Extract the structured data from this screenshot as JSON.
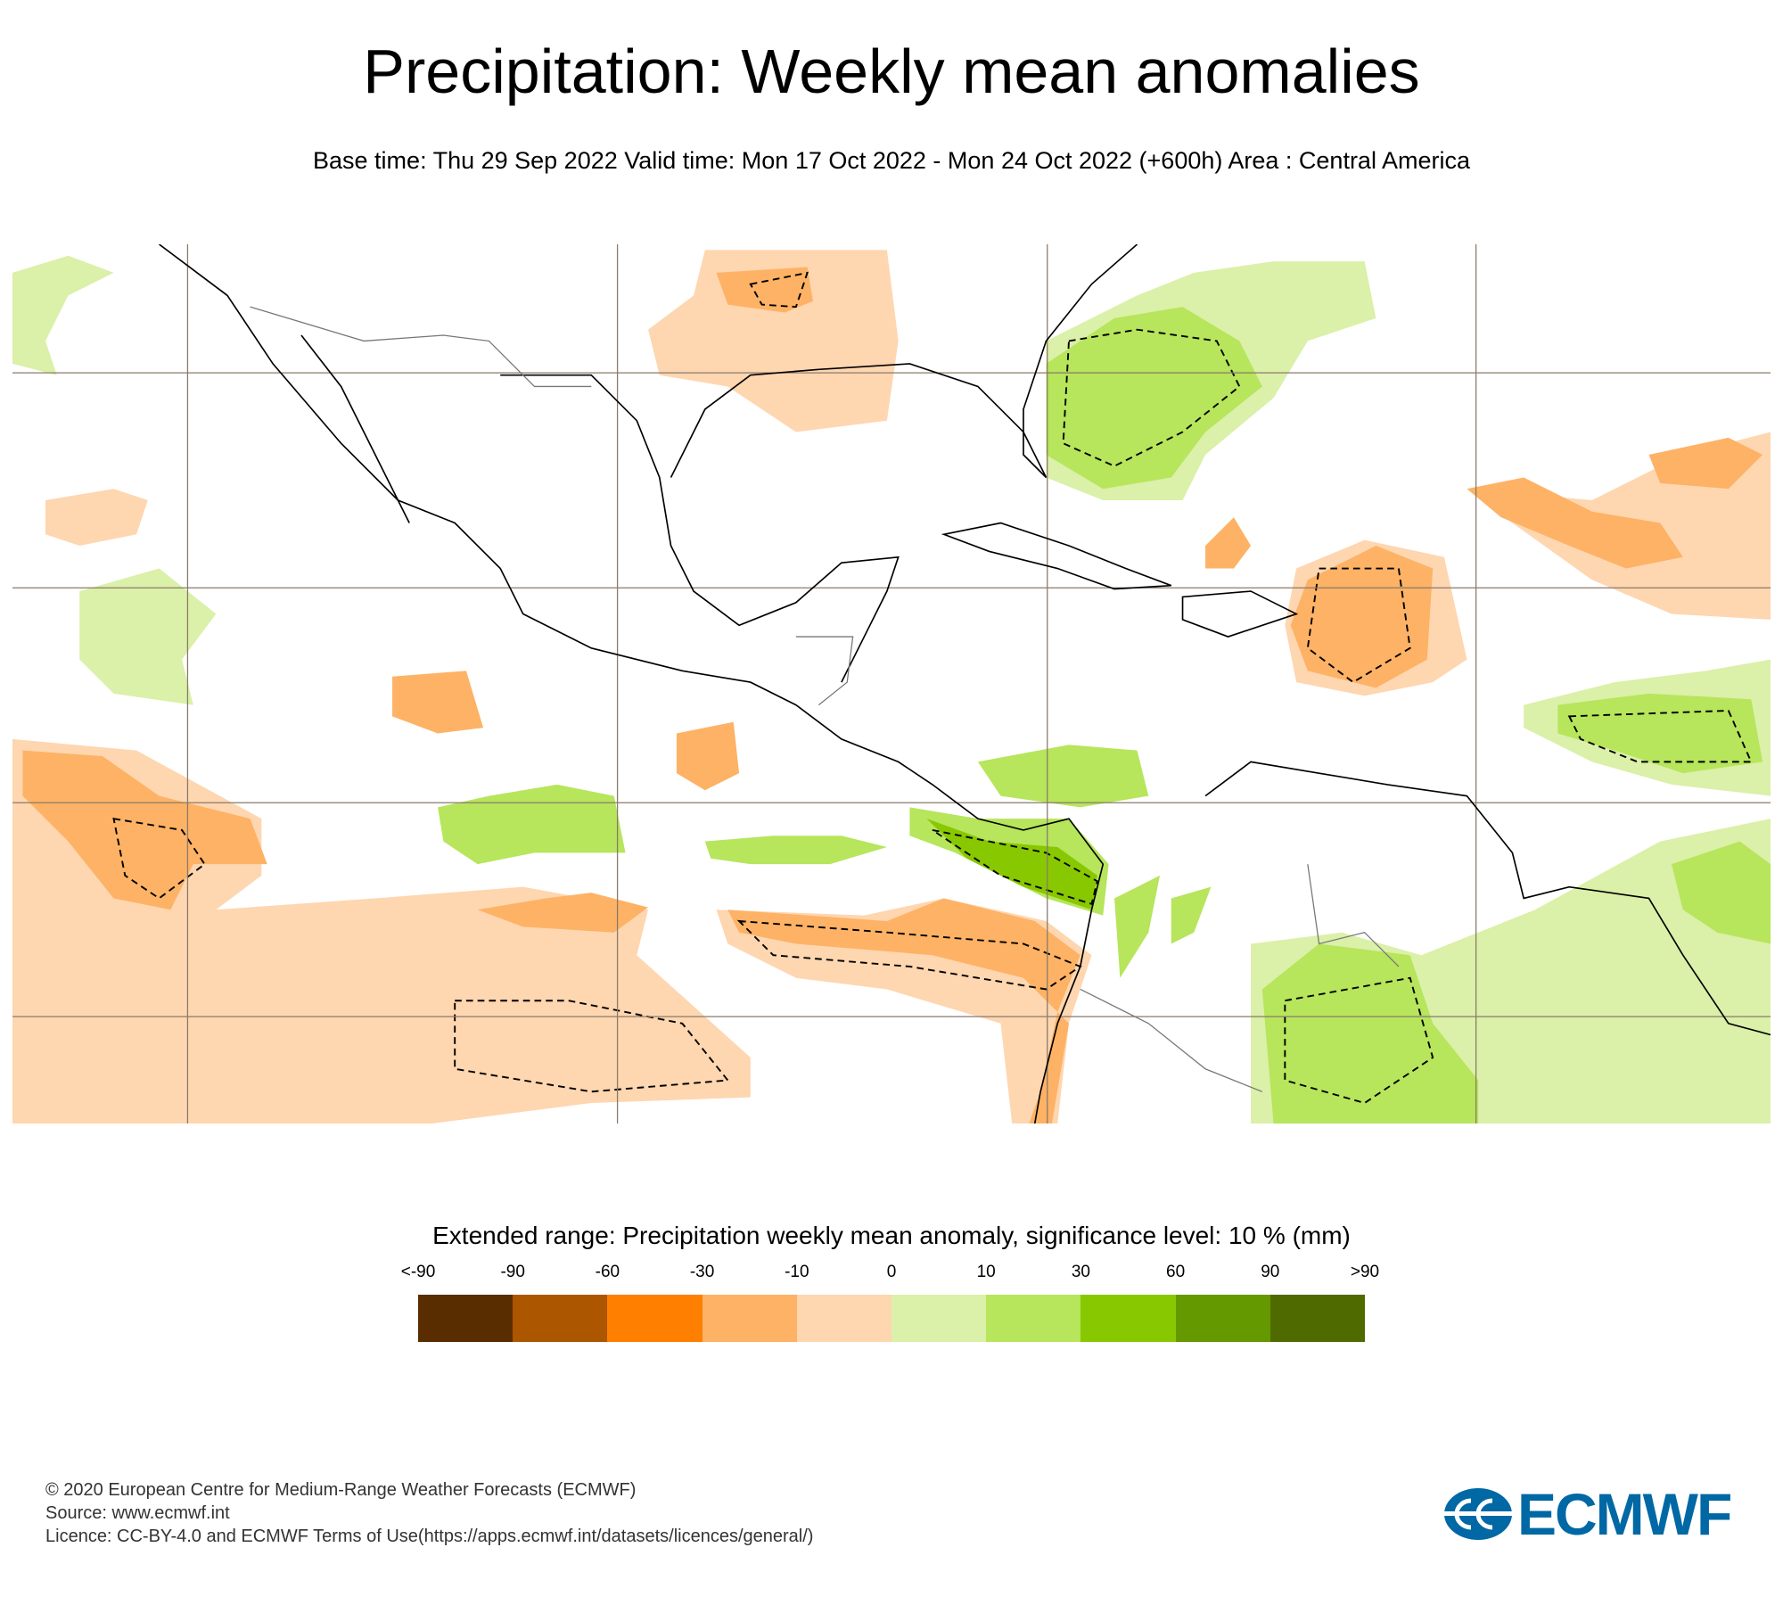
{
  "header": {
    "title": "Precipitation: Weekly mean anomalies",
    "subtitle": "Base time: Thu 29 Sep 2022 Valid time: Mon 17 Oct 2022 - Mon 24 Oct 2022 (+600h) Area : Central America"
  },
  "chart_data": {
    "type": "heatmap",
    "title": "Precipitation: Weekly mean anomalies",
    "area": "Central America",
    "legend": {
      "title": "Extended range: Precipitation weekly mean anomaly, significance level: 10 % (mm)",
      "tick_labels": [
        "<-90",
        "-90",
        "-60",
        "-30",
        "-10",
        "0",
        "10",
        "30",
        "60",
        "90",
        ">90"
      ],
      "colors": [
        "#5a2d00",
        "#ad5600",
        "#ff7f00",
        "#fdb265",
        "#fed6b0",
        "#dbf0a8",
        "#b7e55c",
        "#88c800",
        "#659900",
        "#4f6b00"
      ],
      "placement": "bottom"
    },
    "significance_contour": "dashed black"
  },
  "footer": {
    "lines": [
      "© 2020 European Centre for Medium-Range Weather Forecasts (ECMWF)",
      "Source: www.ecmwf.int",
      "Licence: CC-BY-4.0 and ECMWF Terms of Use(https://apps.ecmwf.int/datasets/licences/general/)"
    ],
    "logo": "ECMWF"
  }
}
